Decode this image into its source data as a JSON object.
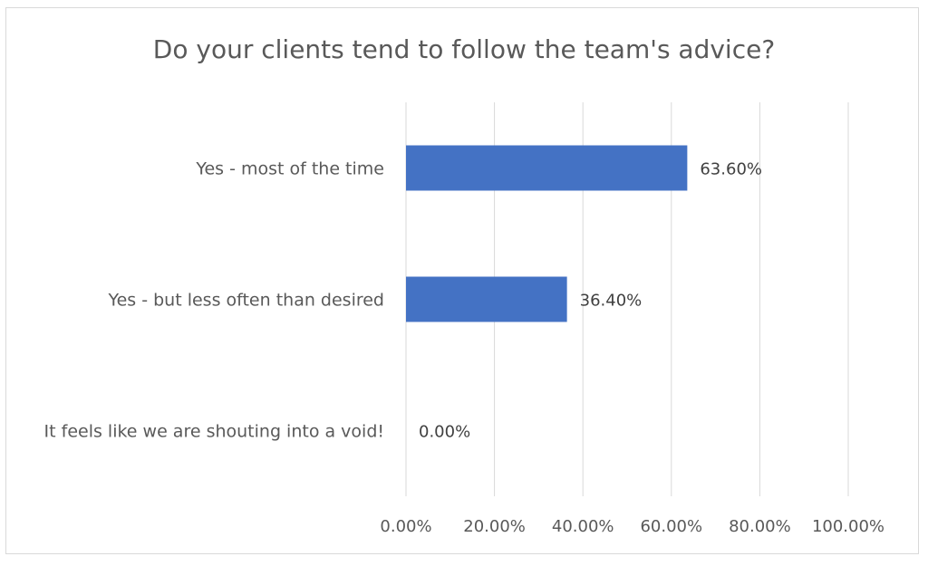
{
  "chart_data": {
    "type": "bar",
    "orientation": "horizontal",
    "title": "Do your clients tend to follow the team's advice?",
    "categories": [
      "Yes - most of the time",
      "Yes - but less often than desired",
      "It feels like we are shouting into a void!"
    ],
    "values": [
      63.6,
      36.4,
      0.0
    ],
    "data_labels": [
      "63.60%",
      "36.40%",
      "0.00%"
    ],
    "xlim": [
      0,
      100
    ],
    "x_ticks": [
      0,
      20,
      40,
      60,
      80,
      100
    ],
    "x_tick_labels": [
      "0.00%",
      "20.00%",
      "40.00%",
      "60.00%",
      "80.00%",
      "100.00%"
    ],
    "grid": true,
    "legend": "none",
    "bar_color": "#4472c4"
  }
}
